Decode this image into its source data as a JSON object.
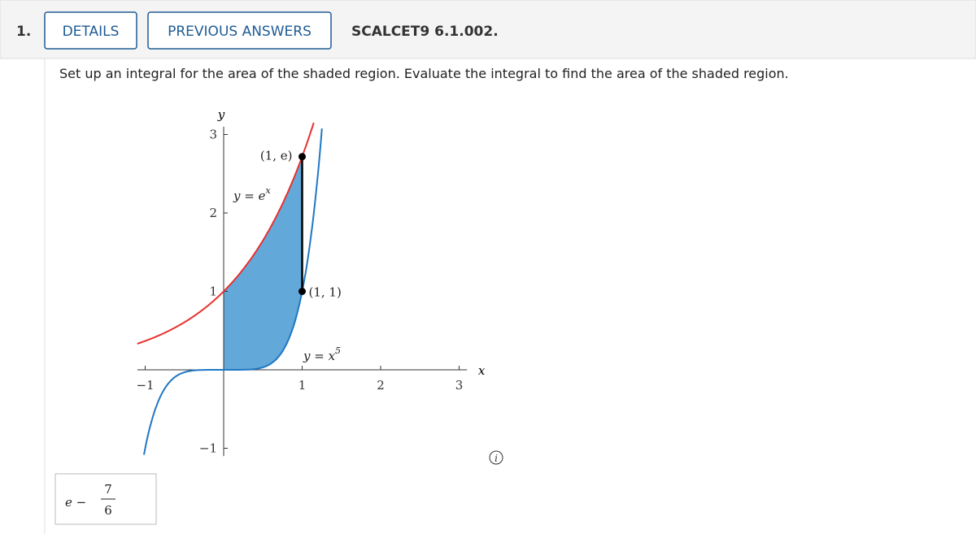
{
  "header": {
    "number": "1.",
    "buttons": [
      "DETAILS",
      "PREVIOUS ANSWERS"
    ],
    "code": "SCALCET9 6.1.002."
  },
  "question": "Set up an integral for the area of the shaded region. Evaluate the integral to find the area of the shaded region.",
  "figure": {
    "x_label": "x",
    "y_label": "y",
    "xlim": [
      -1.1,
      3.1
    ],
    "ylim": [
      -1.1,
      3.1
    ],
    "xticks": [
      {
        "value": -1,
        "label": "−1"
      },
      1,
      2,
      3
    ],
    "yticks": [
      {
        "value": -1,
        "label": "−1"
      },
      1,
      2,
      3
    ],
    "curves": [
      {
        "label": "y = e",
        "exponent": "x",
        "color": "#e8312f"
      },
      {
        "label": "y = x",
        "exponent": "5",
        "color": "#1f77c4"
      }
    ],
    "points": [
      {
        "label": "(1, e)",
        "x": 1,
        "y": 2.718
      },
      {
        "label": "(1, 1)",
        "x": 1,
        "y": 1
      }
    ],
    "shade_color": "#62a8d8"
  },
  "answer": {
    "lead": "e −",
    "numerator": "7",
    "denominator": "6"
  }
}
